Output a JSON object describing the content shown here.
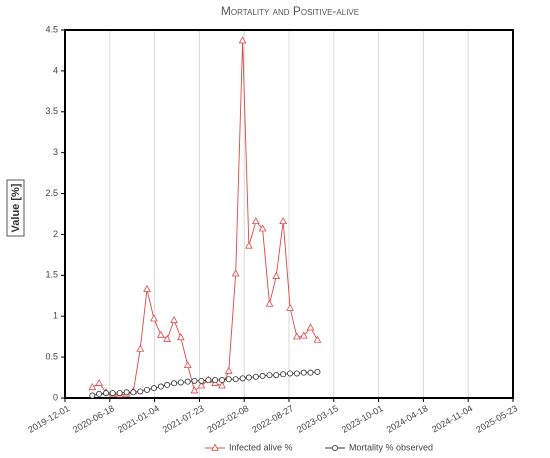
{
  "chart_data": {
    "type": "line",
    "title": "Mortality and Positive-alive",
    "y_label": "Value [%]",
    "x": [
      "2020-04-01",
      "2020-05-01",
      "2020-06-01",
      "2020-07-01",
      "2020-08-01",
      "2020-09-01",
      "2020-10-01",
      "2020-11-01",
      "2020-12-01",
      "2021-01-01",
      "2021-02-01",
      "2021-03-01",
      "2021-04-01",
      "2021-05-01",
      "2021-06-01",
      "2021-07-01",
      "2021-08-01",
      "2021-09-01",
      "2021-10-01",
      "2021-11-01",
      "2021-12-01",
      "2022-01-01",
      "2022-02-01",
      "2022-03-01",
      "2022-04-01",
      "2022-05-01",
      "2022-06-01",
      "2022-07-01",
      "2022-08-01",
      "2022-09-01",
      "2022-10-01",
      "2022-11-01",
      "2022-12-01",
      "2023-01-01"
    ],
    "series": [
      {
        "name": "Infected alive %",
        "color": "#e04848",
        "marker": "triangle",
        "values": [
          0.13,
          0.18,
          0.07,
          0.05,
          0.04,
          0.05,
          0.08,
          0.6,
          1.33,
          0.97,
          0.77,
          0.72,
          0.95,
          0.74,
          0.4,
          0.09,
          0.15,
          0.22,
          0.18,
          0.15,
          0.33,
          1.52,
          4.37,
          1.86,
          2.16,
          2.07,
          1.15,
          1.49,
          2.16,
          1.1,
          0.75,
          0.76,
          0.86,
          0.71
        ]
      },
      {
        "name": "Mortality % observed",
        "color": "#333333",
        "marker": "circle",
        "values": [
          0.03,
          0.05,
          0.06,
          0.06,
          0.06,
          0.07,
          0.07,
          0.08,
          0.1,
          0.12,
          0.14,
          0.16,
          0.18,
          0.19,
          0.2,
          0.21,
          0.21,
          0.22,
          0.22,
          0.22,
          0.23,
          0.23,
          0.24,
          0.25,
          0.26,
          0.27,
          0.28,
          0.28,
          0.29,
          0.3,
          0.3,
          0.31,
          0.31,
          0.32
        ]
      }
    ],
    "xlim": [
      "2019-12-01",
      "2025-05-23"
    ],
    "xticks": [
      "2019-12-01",
      "2020-06-18",
      "2021-01-04",
      "2021-07-23",
      "2022-02-08",
      "2022-08-27",
      "2023-03-15",
      "2023-10-01",
      "2024-04-18",
      "2024-11-04",
      "2025-05-23"
    ],
    "ylim": [
      0,
      4.5
    ],
    "yticks": [
      0,
      0.5,
      1,
      1.5,
      2,
      2.5,
      3,
      3.5,
      4,
      4.5
    ],
    "grid": "x",
    "legend": "bottom"
  }
}
